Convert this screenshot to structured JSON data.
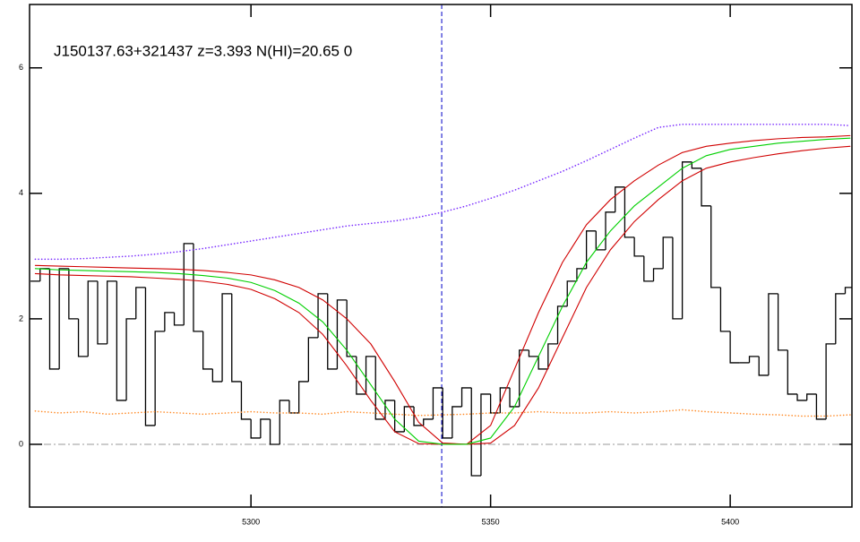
{
  "chart_data": {
    "type": "spectrum",
    "title": "J150137.63+321437 z=3.393 N(HI)=20.65 0",
    "xlim": [
      5253.8,
      5425.4
    ],
    "ylim": [
      -1.0,
      7.01
    ],
    "xticks": [
      5300,
      5350,
      5400
    ],
    "yticks": [
      0,
      2,
      4,
      6
    ],
    "vline": 5339.8,
    "hline": 0,
    "series": [
      {
        "name": "flux",
        "style": "step",
        "color": "#000000",
        "x": [
          5255,
          5257,
          5259,
          5261,
          5263,
          5265,
          5267,
          5269,
          5271,
          5273,
          5275,
          5277,
          5279,
          5281,
          5283,
          5285,
          5287,
          5289,
          5291,
          5293,
          5295,
          5297,
          5299,
          5301,
          5303,
          5305,
          5307,
          5309,
          5311,
          5313,
          5315,
          5317,
          5319,
          5321,
          5323,
          5325,
          5327,
          5329,
          5331,
          5333,
          5335,
          5337,
          5339,
          5341,
          5343,
          5345,
          5347,
          5349,
          5351,
          5353,
          5355,
          5357,
          5359,
          5361,
          5363,
          5365,
          5367,
          5369,
          5371,
          5373,
          5375,
          5377,
          5379,
          5381,
          5383,
          5385,
          5387,
          5389,
          5391,
          5393,
          5395,
          5397,
          5399,
          5401,
          5403,
          5405,
          5407,
          5409,
          5411,
          5413,
          5415,
          5417,
          5419,
          5421,
          5423,
          5425
        ],
        "values": [
          2.6,
          2.8,
          1.2,
          2.8,
          2.0,
          1.4,
          2.6,
          1.6,
          2.6,
          0.7,
          2.0,
          2.5,
          0.3,
          1.8,
          2.1,
          1.9,
          3.2,
          1.8,
          1.2,
          1.0,
          2.4,
          1.0,
          0.4,
          0.1,
          0.4,
          0.0,
          0.7,
          0.5,
          1.0,
          1.7,
          2.4,
          1.2,
          2.3,
          1.4,
          0.8,
          1.4,
          0.4,
          0.7,
          0.2,
          0.6,
          0.3,
          0.4,
          0.9,
          0.1,
          0.6,
          0.9,
          -0.5,
          0.8,
          0.5,
          0.9,
          0.6,
          1.5,
          1.4,
          1.2,
          1.6,
          2.2,
          2.6,
          2.8,
          3.4,
          3.1,
          3.7,
          4.1,
          3.3,
          3.0,
          2.6,
          2.8,
          3.3,
          2.0,
          4.5,
          4.4,
          3.8,
          2.5,
          1.8,
          1.3,
          1.3,
          1.4,
          1.1,
          2.4,
          1.5,
          0.8,
          0.7,
          0.8,
          0.4,
          1.6,
          2.4,
          2.5
        ]
      },
      {
        "name": "continuum",
        "style": "dotted",
        "color": "#7a2cff",
        "x": [
          5255,
          5260,
          5265,
          5270,
          5275,
          5280,
          5285,
          5290,
          5295,
          5300,
          5305,
          5310,
          5315,
          5320,
          5325,
          5330,
          5335,
          5340,
          5345,
          5350,
          5355,
          5360,
          5365,
          5370,
          5375,
          5380,
          5385,
          5390,
          5395,
          5400,
          5405,
          5410,
          5415,
          5420,
          5425
        ],
        "values": [
          2.95,
          2.95,
          2.96,
          2.98,
          3.0,
          3.03,
          3.07,
          3.12,
          3.18,
          3.24,
          3.3,
          3.36,
          3.42,
          3.48,
          3.52,
          3.56,
          3.62,
          3.7,
          3.8,
          3.92,
          4.05,
          4.2,
          4.35,
          4.52,
          4.7,
          4.88,
          5.05,
          5.1,
          5.1,
          5.1,
          5.1,
          5.1,
          5.1,
          5.1,
          5.08
        ]
      },
      {
        "name": "error",
        "style": "dotted",
        "color": "#ff8c2a",
        "x": [
          5255,
          5260,
          5265,
          5270,
          5275,
          5280,
          5285,
          5290,
          5295,
          5300,
          5305,
          5310,
          5315,
          5320,
          5325,
          5330,
          5335,
          5340,
          5345,
          5350,
          5355,
          5360,
          5365,
          5370,
          5375,
          5380,
          5385,
          5390,
          5395,
          5400,
          5405,
          5410,
          5415,
          5420,
          5425
        ],
        "values": [
          0.53,
          0.5,
          0.52,
          0.48,
          0.5,
          0.52,
          0.5,
          0.48,
          0.5,
          0.52,
          0.5,
          0.5,
          0.48,
          0.52,
          0.5,
          0.48,
          0.46,
          0.47,
          0.48,
          0.5,
          0.5,
          0.52,
          0.5,
          0.5,
          0.52,
          0.5,
          0.52,
          0.55,
          0.52,
          0.5,
          0.48,
          0.47,
          0.45,
          0.45,
          0.47
        ]
      },
      {
        "name": "model-upper",
        "style": "solid",
        "color": "#d00000",
        "x": [
          5255,
          5260,
          5265,
          5270,
          5275,
          5280,
          5285,
          5290,
          5295,
          5300,
          5305,
          5310,
          5315,
          5320,
          5325,
          5330,
          5335,
          5340,
          5345,
          5350,
          5355,
          5360,
          5365,
          5370,
          5375,
          5380,
          5385,
          5390,
          5395,
          5400,
          5405,
          5410,
          5415,
          5420,
          5425
        ],
        "values": [
          2.85,
          2.84,
          2.83,
          2.82,
          2.81,
          2.8,
          2.79,
          2.77,
          2.74,
          2.7,
          2.62,
          2.5,
          2.3,
          2.0,
          1.6,
          1.0,
          0.35,
          0.02,
          0.0,
          0.3,
          1.2,
          2.1,
          2.9,
          3.5,
          3.9,
          4.2,
          4.45,
          4.65,
          4.75,
          4.8,
          4.84,
          4.87,
          4.89,
          4.9,
          4.92
        ]
      },
      {
        "name": "model-lower",
        "style": "solid",
        "color": "#d00000",
        "x": [
          5255,
          5260,
          5265,
          5270,
          5275,
          5280,
          5285,
          5290,
          5295,
          5300,
          5305,
          5310,
          5315,
          5320,
          5325,
          5330,
          5335,
          5340,
          5345,
          5350,
          5355,
          5360,
          5365,
          5370,
          5375,
          5380,
          5385,
          5390,
          5395,
          5400,
          5405,
          5410,
          5415,
          5420,
          5425
        ],
        "values": [
          2.72,
          2.7,
          2.69,
          2.68,
          2.67,
          2.65,
          2.63,
          2.6,
          2.55,
          2.47,
          2.32,
          2.1,
          1.75,
          1.25,
          0.7,
          0.2,
          0.01,
          0.0,
          0.0,
          0.02,
          0.3,
          0.9,
          1.7,
          2.5,
          3.1,
          3.55,
          3.9,
          4.2,
          4.4,
          4.5,
          4.57,
          4.63,
          4.68,
          4.72,
          4.75
        ]
      },
      {
        "name": "model",
        "style": "solid",
        "color": "#00d000",
        "x": [
          5255,
          5260,
          5265,
          5270,
          5275,
          5280,
          5285,
          5290,
          5295,
          5300,
          5305,
          5310,
          5315,
          5320,
          5325,
          5330,
          5335,
          5340,
          5345,
          5350,
          5355,
          5360,
          5365,
          5370,
          5375,
          5380,
          5385,
          5390,
          5395,
          5400,
          5405,
          5410,
          5415,
          5420,
          5425
        ],
        "values": [
          2.8,
          2.78,
          2.77,
          2.76,
          2.75,
          2.74,
          2.72,
          2.69,
          2.65,
          2.58,
          2.45,
          2.25,
          1.95,
          1.5,
          0.95,
          0.4,
          0.05,
          0.0,
          0.0,
          0.1,
          0.6,
          1.4,
          2.2,
          2.9,
          3.4,
          3.8,
          4.1,
          4.4,
          4.6,
          4.7,
          4.75,
          4.8,
          4.83,
          4.86,
          4.88
        ]
      }
    ],
    "hline_color": "#999999",
    "vline_color": "#0000c8"
  }
}
